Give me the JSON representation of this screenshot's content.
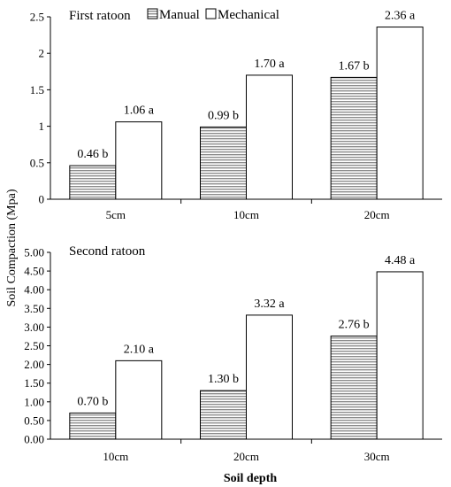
{
  "figure": {
    "ylabel": "Soil Compaction (Mpa)",
    "xlabel": "Soil depth"
  },
  "legend": {
    "manual": "Manual",
    "mechanical": "Mechanical"
  },
  "colors": {
    "manual_fill": "#ffffff",
    "manual_stripe": "#707070",
    "mechanical_fill": "#ffffff",
    "stroke": "#000000"
  },
  "chart_data": [
    {
      "type": "bar",
      "title": "First ratoon",
      "categories": [
        "5cm",
        "10cm",
        "20cm"
      ],
      "series": [
        {
          "name": "Manual",
          "values": [
            0.46,
            0.99,
            1.67
          ],
          "labels": [
            "0.46 b",
            "0.99 b",
            "1.67 b"
          ]
        },
        {
          "name": "Mechanical",
          "values": [
            1.06,
            1.7,
            2.36
          ],
          "labels": [
            "1.06 a",
            "1.70 a",
            "2.36 a"
          ]
        }
      ],
      "ylim": [
        0,
        2.5
      ],
      "yticks": [
        "0",
        "0.5",
        "1",
        "1.5",
        "2",
        "2.5"
      ],
      "legend_position": "top",
      "grid": false
    },
    {
      "type": "bar",
      "title": "Second ratoon",
      "categories": [
        "10cm",
        "20cm",
        "30cm"
      ],
      "series": [
        {
          "name": "Manual",
          "values": [
            0.7,
            1.3,
            2.76
          ],
          "labels": [
            "0.70 b",
            "1.30 b",
            "2.76 b"
          ]
        },
        {
          "name": "Mechanical",
          "values": [
            2.1,
            3.32,
            4.48
          ],
          "labels": [
            "2.10 a",
            "3.32 a",
            "4.48 a"
          ]
        }
      ],
      "ylim": [
        0,
        5
      ],
      "yticks": [
        "0.00",
        "0.50",
        "1.00",
        "1.50",
        "2.00",
        "2.50",
        "3.00",
        "3.50",
        "4.00",
        "4.50",
        "5.00"
      ],
      "grid": false
    }
  ]
}
